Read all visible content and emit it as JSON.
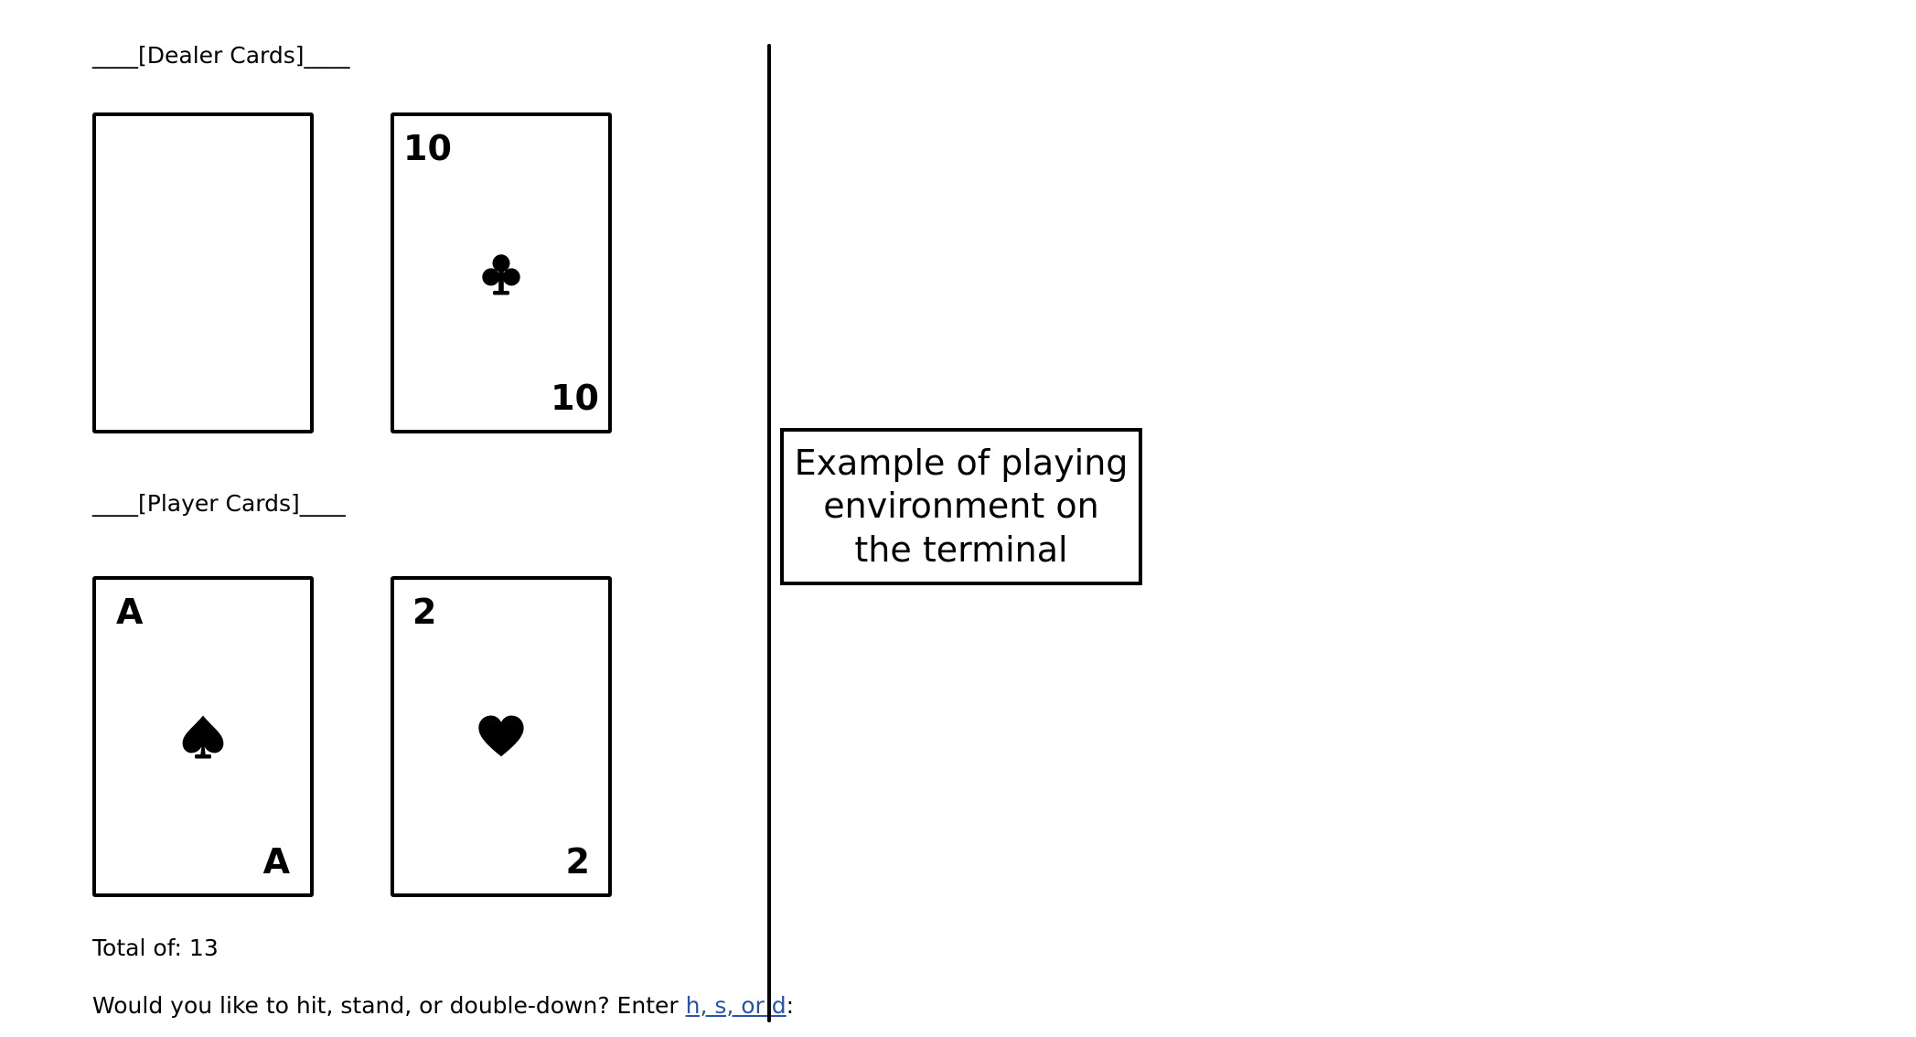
{
  "dealer": {
    "heading": "____[Dealer Cards]____",
    "cards": [
      {
        "rank": "",
        "suit": "face-down"
      },
      {
        "rank": "10",
        "suit": "clubs"
      }
    ]
  },
  "player": {
    "heading": "____[Player Cards]____",
    "cards": [
      {
        "rank": "A",
        "suit": "spades"
      },
      {
        "rank": "2",
        "suit": "hearts"
      }
    ],
    "total_text": "Total of: 13"
  },
  "prompt": {
    "text": "Would you like to hit, stand, or double-down? Enter ",
    "options": "h, s, or d",
    "suffix": ":"
  },
  "caption": {
    "text": "Example of playing environment on the terminal"
  },
  "icons": {
    "clubs": "club-suit-icon",
    "spades": "spade-suit-icon",
    "hearts": "heart-suit-icon"
  }
}
